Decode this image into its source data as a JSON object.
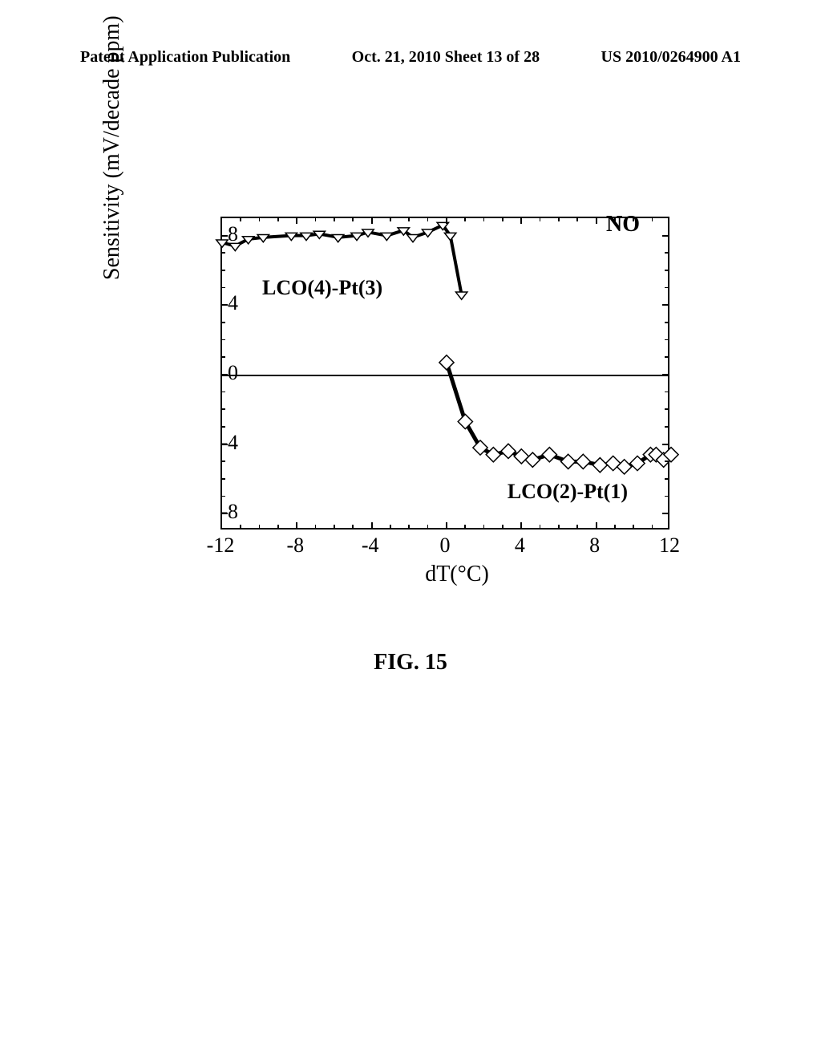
{
  "header": {
    "left": "Patent Application Publication",
    "center": "Oct. 21, 2010  Sheet 13 of 28",
    "right": "US 2010/0264900 A1"
  },
  "chart": {
    "type": "scatter-line",
    "xlabel": "dT(°C)",
    "ylabel": "Sensitivity (mV/decade ppm)",
    "no_label": "NO",
    "xlim": [
      -12,
      12
    ],
    "ylim": [
      -9,
      9
    ],
    "xtick_step": 4,
    "ytick_step": 4,
    "xticks": [
      -12,
      -8,
      -4,
      0,
      4,
      8,
      12
    ],
    "yticks": [
      -8,
      -4,
      0,
      4,
      8
    ],
    "background_color": "#ffffff",
    "axis_color": "#000000",
    "zero_line_y": 0,
    "series1": {
      "label": "LCO(4)-Pt(3)",
      "marker": "triangle-down",
      "marker_fill": "#ffffff",
      "marker_stroke": "#000000",
      "marker_size": 12,
      "line_color": "#000000",
      "line_width": 4,
      "data": [
        {
          "x": -12,
          "y": 7.6
        },
        {
          "x": -11.3,
          "y": 7.4
        },
        {
          "x": -10.6,
          "y": 7.8
        },
        {
          "x": -9.8,
          "y": 7.9
        },
        {
          "x": -8.3,
          "y": 8.0
        },
        {
          "x": -7.5,
          "y": 8.0
        },
        {
          "x": -6.8,
          "y": 8.1
        },
        {
          "x": -5.8,
          "y": 7.9
        },
        {
          "x": -4.8,
          "y": 8.0
        },
        {
          "x": -4.2,
          "y": 8.2
        },
        {
          "x": -3.2,
          "y": 8.0
        },
        {
          "x": -2.3,
          "y": 8.3
        },
        {
          "x": -1.8,
          "y": 7.9
        },
        {
          "x": -1.0,
          "y": 8.2
        },
        {
          "x": -0.2,
          "y": 8.6
        },
        {
          "x": 0.2,
          "y": 8.0
        },
        {
          "x": 0.8,
          "y": 4.6
        }
      ]
    },
    "series2": {
      "label": "LCO(2)-Pt(1)",
      "marker": "diamond",
      "marker_fill": "#ffffff",
      "marker_stroke": "#000000",
      "marker_size": 13,
      "line_color": "#000000",
      "line_width": 5,
      "data": [
        {
          "x": 0.0,
          "y": 0.7
        },
        {
          "x": 1.0,
          "y": -2.7
        },
        {
          "x": 1.8,
          "y": -4.2
        },
        {
          "x": 2.5,
          "y": -4.6
        },
        {
          "x": 3.3,
          "y": -4.4
        },
        {
          "x": 4.0,
          "y": -4.7
        },
        {
          "x": 4.6,
          "y": -4.9
        },
        {
          "x": 5.5,
          "y": -4.6
        },
        {
          "x": 6.5,
          "y": -5.0
        },
        {
          "x": 7.3,
          "y": -5.0
        },
        {
          "x": 8.2,
          "y": -5.2
        },
        {
          "x": 8.9,
          "y": -5.1
        },
        {
          "x": 9.5,
          "y": -5.3
        },
        {
          "x": 10.2,
          "y": -5.1
        },
        {
          "x": 10.9,
          "y": -4.6
        },
        {
          "x": 11.2,
          "y": -4.6
        },
        {
          "x": 11.6,
          "y": -4.9
        },
        {
          "x": 12.0,
          "y": -4.6
        }
      ]
    }
  },
  "figure_caption": "FIG.  15"
}
